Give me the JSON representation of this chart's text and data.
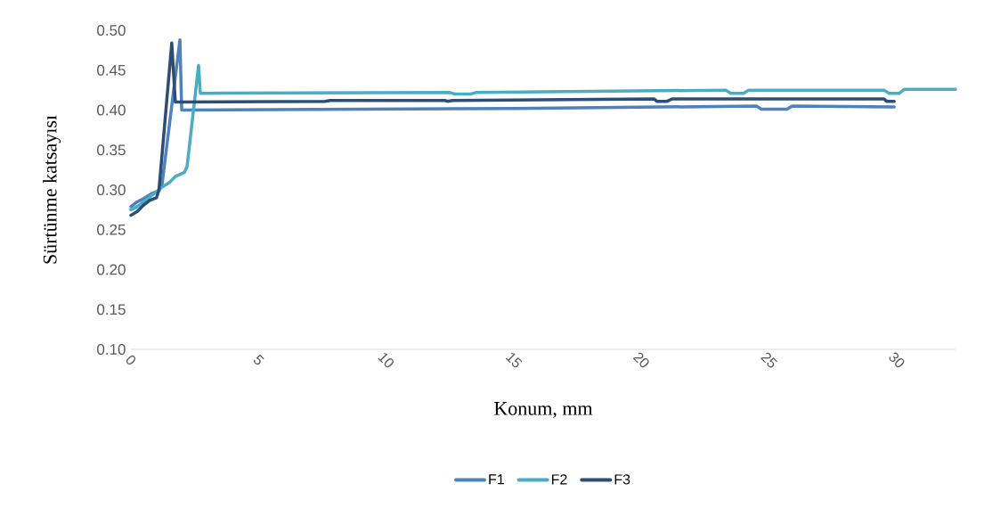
{
  "chart_data": {
    "type": "line",
    "xlabel": "Konum, mm",
    "ylabel": "Sürtünme katsayısı",
    "xlim": [
      0,
      32.3
    ],
    "xticks": [
      0,
      5,
      10,
      15,
      20,
      25,
      30
    ],
    "ylim": [
      0.1,
      0.5
    ],
    "yticks": [
      {
        "value": 0.1,
        "label": "0.10"
      },
      0.15,
      {
        "value": 0.2,
        "label": "0.20"
      },
      0.25,
      {
        "value": 0.3,
        "label": "0.30"
      },
      0.35,
      {
        "value": 0.4,
        "label": "0.40"
      },
      0.45,
      {
        "value": 0.5,
        "label": "0.50"
      }
    ],
    "grid": false,
    "legend": "bottom",
    "marker": "none",
    "line_style": "solid",
    "series": [
      {
        "name": "F1",
        "color": "#4f81bd",
        "x": [
          0,
          0.2,
          0.5,
          0.8,
          1.1,
          1.22,
          1.92,
          1.99,
          15,
          24.5,
          24.7,
          25.7,
          25.9,
          29.9
        ],
        "values": [
          0.279,
          0.284,
          0.289,
          0.295,
          0.299,
          0.307,
          0.488,
          0.4,
          0.402,
          0.405,
          0.401,
          0.401,
          0.405,
          0.404
        ]
      },
      {
        "name": "F2",
        "color": "#4bacc6",
        "x": [
          0,
          0.3,
          0.7,
          1.1,
          1.2,
          1.5,
          1.75,
          2.1,
          2.2,
          2.65,
          2.72,
          12.5,
          12.7,
          13.3,
          13.5,
          23.3,
          23.5,
          24.0,
          24.2,
          29.5,
          29.7,
          30.1,
          30.3,
          32.3
        ],
        "values": [
          0.275,
          0.28,
          0.29,
          0.3,
          0.303,
          0.309,
          0.317,
          0.322,
          0.329,
          0.456,
          0.421,
          0.422,
          0.42,
          0.42,
          0.422,
          0.425,
          0.421,
          0.421,
          0.425,
          0.425,
          0.421,
          0.421,
          0.426,
          0.426
        ]
      },
      {
        "name": "F3",
        "color": "#2c4d75",
        "x": [
          0,
          0.25,
          0.5,
          0.75,
          1,
          1.1,
          1.6,
          1.74,
          7.6,
          7.8,
          12.3,
          12.4,
          12.6,
          20.5,
          20.6,
          21,
          21.2,
          29.5,
          29.6,
          29.9
        ],
        "values": [
          0.268,
          0.273,
          0.281,
          0.287,
          0.29,
          0.3,
          0.484,
          0.41,
          0.411,
          0.412,
          0.412,
          0.411,
          0.412,
          0.414,
          0.411,
          0.411,
          0.414,
          0.414,
          0.411,
          0.411
        ]
      }
    ]
  }
}
